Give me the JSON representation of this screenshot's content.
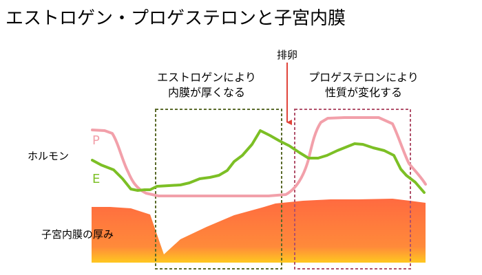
{
  "title": "エストロゲン・プロゲステロンと子宮内膜",
  "labels": {
    "hormone": "ホルモン",
    "endometrium": "子宮内膜の厚み",
    "ovulation": "排卵"
  },
  "series": {
    "progesterone": {
      "letter": "P",
      "color": "#f2a0aa"
    },
    "estrogen": {
      "letter": "E",
      "color": "#7cbf25"
    }
  },
  "phases": {
    "estrogen_phase": {
      "line1": "エストロゲンにより",
      "line2": "内膜が厚くなる",
      "color": "#5a6a2a"
    },
    "progesterone_phase": {
      "line1": "プロゲステロンにより",
      "line2": "性質が変化する",
      "color": "#b0506a"
    }
  },
  "colors": {
    "ovulation_arrow": "#e0443a",
    "endometrium_top": "#ff6a40",
    "endometrium_bottom": "#ffc820"
  }
}
